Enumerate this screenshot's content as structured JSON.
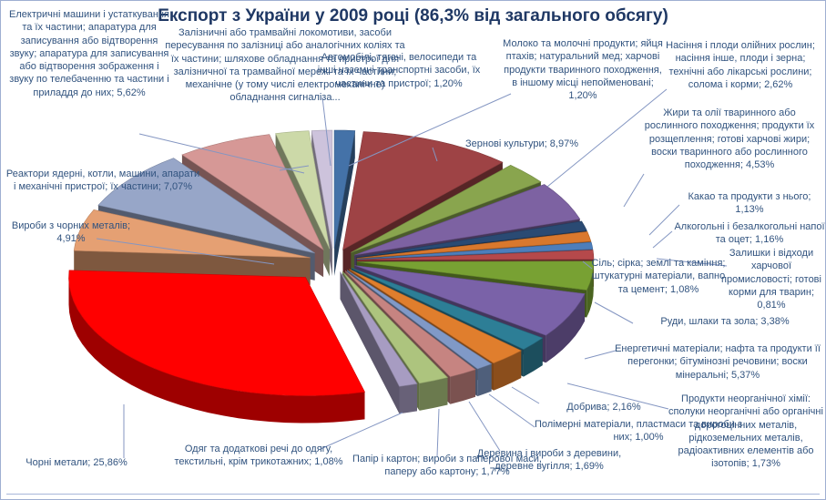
{
  "title": {
    "text": "Експорт з України у 2009 році (86,3% від загального обсягу)"
  },
  "colors": {
    "title": "#1F3864",
    "label": "#31537F",
    "leader": "#8496C2",
    "border": "#9FAFD2"
  },
  "chart_data": {
    "type": "pie",
    "style": "3d-exploded",
    "title": "Експорт з України у 2009 році (86,3% від загального обсягу)",
    "legend": "none",
    "labels_position": "outside-with-leader-lines",
    "units": "percent",
    "slices": [
      {
        "label": "Молоко та молочні продукти; яйця птахів; натуральний мед; харчові продукти тваринного походження, в іншому місці непойменовані; 1,20%",
        "value": 1.2,
        "color": "#4472A8"
      },
      {
        "label": "Зернові культури; 8,97%",
        "value": 8.97,
        "color": "#9E4345"
      },
      {
        "label": "Насіння і плоди олійних рослин; насіння інше, плоди і зерна; технічні або лікарські рослини; солома і корми; 2,62%",
        "value": 2.62,
        "color": "#89A54E"
      },
      {
        "label": "Жири та олії тваринного або рослинного походження; продукти їх розщеплення; готові харчові жири; воски тваринного або рослинного походження; 4,53%",
        "value": 4.53,
        "color": "#7D62A2"
      },
      {
        "label": "Какао та продукти з нього; 1,13%",
        "value": 1.13,
        "color": "#2A4A73"
      },
      {
        "label": "Алкогольні і безалкогольні напої та оцет; 1,16%",
        "value": 1.16,
        "color": "#D9782D"
      },
      {
        "label": "Залишки і відходи харчової промисловості; готові корми для тварин; 0,81%",
        "value": 0.81,
        "color": "#4D7EBB"
      },
      {
        "label": "Сіль; сірка; землі та каміння; штукатурні матеріали, вапно та цемент; 1,08%",
        "value": 1.08,
        "color": "#B5494B"
      },
      {
        "label": "Руди, шлаки та зола; 3,38%",
        "value": 3.38,
        "color": "#78A133"
      },
      {
        "label": "Енергетичні матеріали; нафта та продукти її перегонки; бітумінозні речовини; воски мінеральні; 5,37%",
        "value": 5.37,
        "color": "#7A62A8"
      },
      {
        "label": "Продукти неорганічної хімії: сполуки неорганічні або органічні дорогоцінних металів, рідкоземельних металів, радіоактивних елементів або ізотопів; 1,73%",
        "value": 1.73,
        "color": "#2D7E96"
      },
      {
        "label": "Добрива; 2,16%",
        "value": 2.16,
        "color": "#E07E2D"
      },
      {
        "label": "Полімерні матеріали, пластмаси та вироби з них; 1,00%",
        "value": 1.0,
        "color": "#8099C7"
      },
      {
        "label": "Деревина і вироби з деревини, деревне вугілля; 1,69%",
        "value": 1.69,
        "color": "#C68481"
      },
      {
        "label": "Папір і картон; вироби з паперової маси, паперу або картону; 1,77%",
        "value": 1.77,
        "color": "#ADC47E"
      },
      {
        "label": "Одяг та додаткові речі до одягу, текстильні, крім трикотажних; 1,08%",
        "value": 1.08,
        "color": "#A79CC2"
      },
      {
        "label": "Чорні метали; 25,86%",
        "value": 25.86,
        "color": "#FF0000"
      },
      {
        "label": "Вироби з чорних металів; 4,91%",
        "value": 4.91,
        "color": "#E5A073"
      },
      {
        "label": "Реактори ядерні, котли, машини, апарати і механічні пристрої; їх частини; 7,07%",
        "value": 7.07,
        "color": "#97A6C8"
      },
      {
        "label": "Електричні машини і устаткування та їх частини; апаратура для записування або відтворення звуку; апаратура для записування або відтворення зображення і звуку по телебаченню та частини і приладдя до них; 5,62%",
        "value": 5.62,
        "color": "#D69896"
      },
      {
        "label": "Залізничні або трамвайні локомотиви, засоби пересування по залізниці або аналогічних коліях та їх частини; шляхове обладнання та пристрої для залізничної та трамвайної мережі та їх частини; механічне (у тому числі електромеханічне) обладнання сигналіза...",
        "value": 1.96,
        "color": "#CCD9A8"
      },
      {
        "label": "Автомобілі, тягачі, велосипеди та інші наземні транспортні засоби, їх частини та пристрої; 1,20%",
        "value": 1.2,
        "color": "#CDC3DC"
      }
    ]
  }
}
